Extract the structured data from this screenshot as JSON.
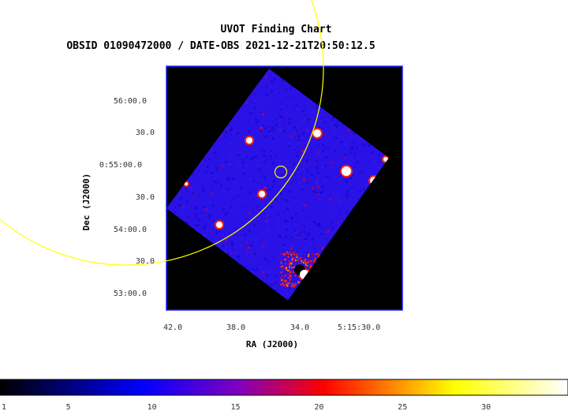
{
  "chart_data": {
    "type": "heatmap",
    "title": "UVOT Finding Chart",
    "subtitle": "OBSID 01090472000 / DATE-OBS 2021-12-21T20:50:12.5",
    "xlabel": "RA (J2000)",
    "ylabel": "Dec (J2000)",
    "x_ticks": [
      "42.0",
      "38.0",
      "34.0",
      "5:15:30.0"
    ],
    "y_ticks": [
      "56:00.0",
      "30.0",
      "0:55:00.0",
      "30.0",
      "54:00.0",
      "30.0",
      "53:00.0"
    ],
    "colorbar_ticks": [
      "1",
      "5",
      "10",
      "15",
      "20",
      "25",
      "30"
    ],
    "colorbar_range": [
      1,
      35
    ],
    "colormap": [
      "#000000",
      "#0000ff",
      "#8000c0",
      "#ff0000",
      "#ffff00",
      "#ffffff"
    ],
    "overlay_color": "#ffff00"
  }
}
